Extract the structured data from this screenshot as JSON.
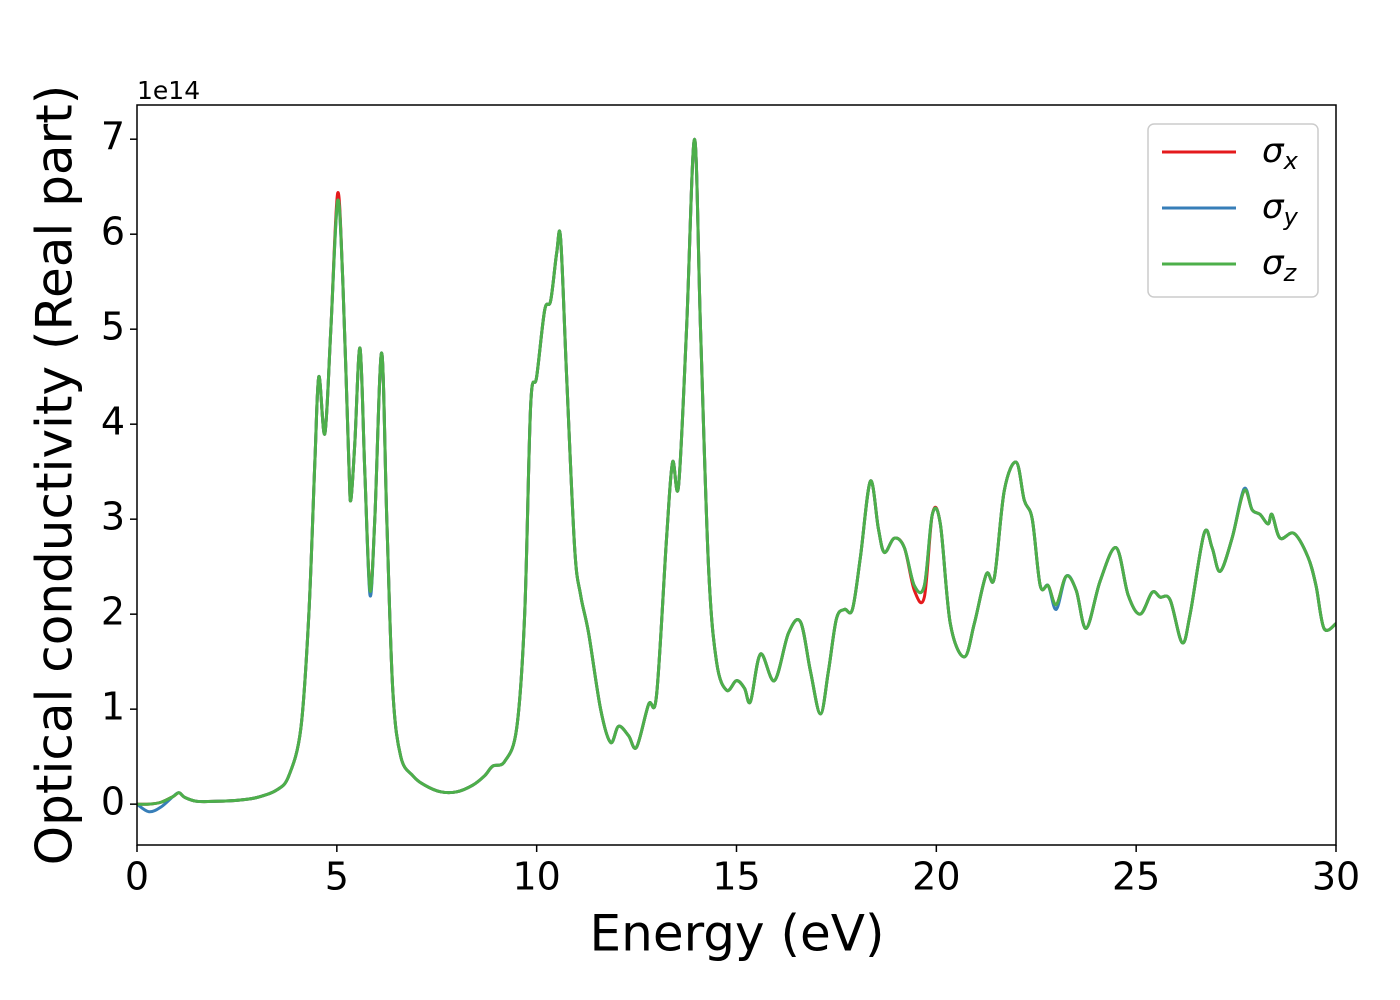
{
  "chart_data": {
    "type": "line",
    "xlabel": "Energy (eV)",
    "ylabel": "Optical conductivity (Real part)",
    "y_offset_label": "1e14",
    "xlim": [
      0,
      30
    ],
    "ylim": [
      -0.43,
      7.36
    ],
    "xticks": [
      0,
      5,
      10,
      15,
      20,
      25,
      30
    ],
    "yticks": [
      0,
      1,
      2,
      3,
      4,
      5,
      6,
      7
    ],
    "grid": false,
    "legend": "upper right",
    "x": [
      0,
      0.3,
      0.6,
      0.9,
      1.05,
      1.2,
      1.5,
      2,
      2.5,
      3,
      3.5,
      3.8,
      4.1,
      4.3,
      4.45,
      4.55,
      4.7,
      4.85,
      5.02,
      5.15,
      5.3,
      5.35,
      5.45,
      5.58,
      5.7,
      5.83,
      5.95,
      6.12,
      6.25,
      6.4,
      6.6,
      6.9,
      7.2,
      7.6,
      8,
      8.4,
      8.7,
      8.9,
      9.2,
      9.5,
      9.7,
      9.85,
      10,
      10.2,
      10.35,
      10.5,
      10.6,
      10.75,
      10.95,
      11.1,
      11.3,
      11.6,
      11.85,
      12.05,
      12.3,
      12.5,
      12.8,
      13,
      13.25,
      13.4,
      13.55,
      13.75,
      13.95,
      14.1,
      14.3,
      14.5,
      14.75,
      15,
      15.2,
      15.35,
      15.6,
      15.95,
      16.3,
      16.6,
      16.85,
      17.1,
      17.3,
      17.5,
      17.7,
      17.9,
      18.1,
      18.35,
      18.55,
      18.7,
      18.95,
      19.2,
      19.45,
      19.7,
      19.9,
      20.1,
      20.35,
      20.7,
      20.95,
      21.25,
      21.45,
      21.7,
      22,
      22.2,
      22.4,
      22.6,
      22.8,
      23,
      23.25,
      23.5,
      23.75,
      24.1,
      24.5,
      24.8,
      25.1,
      25.4,
      25.6,
      25.85,
      26.15,
      26.35,
      26.7,
      26.9,
      27.1,
      27.4,
      27.7,
      27.9,
      28.1,
      28.3,
      28.4,
      28.6,
      28.95,
      29.3,
      29.5,
      29.7,
      30
    ],
    "series": [
      {
        "name": "σx",
        "color": "#e41a1c",
        "values": [
          0,
          0.0,
          0.02,
          0.08,
          0.12,
          0.07,
          0.03,
          0.03,
          0.04,
          0.07,
          0.15,
          0.3,
          0.8,
          2.0,
          3.6,
          4.5,
          3.9,
          5.0,
          6.43,
          5.5,
          3.6,
          3.2,
          3.8,
          4.8,
          3.5,
          2.25,
          3.0,
          4.75,
          3.0,
          1.2,
          0.5,
          0.3,
          0.2,
          0.13,
          0.13,
          0.2,
          0.3,
          0.4,
          0.45,
          0.8,
          2.0,
          4.2,
          4.5,
          5.2,
          5.3,
          5.8,
          5.95,
          4.5,
          2.7,
          2.2,
          1.8,
          1.0,
          0.65,
          0.82,
          0.72,
          0.6,
          1.05,
          1.15,
          2.8,
          3.6,
          3.35,
          5.0,
          7.0,
          5.0,
          2.5,
          1.5,
          1.2,
          1.3,
          1.22,
          1.08,
          1.58,
          1.3,
          1.8,
          1.92,
          1.4,
          0.95,
          1.4,
          1.95,
          2.05,
          2.05,
          2.6,
          3.4,
          2.9,
          2.65,
          2.8,
          2.7,
          2.25,
          2.18,
          3.05,
          2.95,
          1.9,
          1.55,
          1.9,
          2.42,
          2.38,
          3.3,
          3.6,
          3.2,
          3.0,
          2.3,
          2.3,
          2.1,
          2.4,
          2.25,
          1.85,
          2.35,
          2.7,
          2.2,
          2.0,
          2.23,
          2.18,
          2.15,
          1.7,
          2.0,
          2.85,
          2.7,
          2.45,
          2.8,
          3.3,
          3.1,
          3.05,
          2.95,
          3.05,
          2.8,
          2.85,
          2.6,
          2.3,
          1.85,
          1.9
        ]
      },
      {
        "name": "σy",
        "color": "#377eb8",
        "values": [
          0,
          -0.08,
          -0.03,
          0.08,
          0.12,
          0.07,
          0.03,
          0.03,
          0.04,
          0.07,
          0.15,
          0.3,
          0.8,
          2.0,
          3.6,
          4.5,
          3.9,
          5.0,
          6.35,
          5.5,
          3.6,
          3.2,
          3.8,
          4.8,
          3.5,
          2.2,
          3.0,
          4.75,
          3.0,
          1.2,
          0.5,
          0.3,
          0.2,
          0.13,
          0.13,
          0.2,
          0.3,
          0.4,
          0.45,
          0.8,
          2.0,
          4.2,
          4.5,
          5.2,
          5.3,
          5.8,
          5.95,
          4.5,
          2.7,
          2.2,
          1.8,
          1.0,
          0.65,
          0.82,
          0.72,
          0.6,
          1.05,
          1.15,
          2.8,
          3.6,
          3.35,
          5.0,
          7.0,
          5.0,
          2.5,
          1.5,
          1.2,
          1.3,
          1.22,
          1.08,
          1.58,
          1.3,
          1.8,
          1.92,
          1.4,
          0.95,
          1.4,
          1.95,
          2.05,
          2.05,
          2.6,
          3.4,
          2.9,
          2.65,
          2.8,
          2.7,
          2.3,
          2.3,
          3.05,
          2.95,
          1.9,
          1.55,
          1.9,
          2.42,
          2.38,
          3.3,
          3.6,
          3.2,
          3.0,
          2.3,
          2.3,
          2.05,
          2.4,
          2.25,
          1.85,
          2.35,
          2.7,
          2.2,
          2.0,
          2.23,
          2.18,
          2.15,
          1.7,
          2.0,
          2.85,
          2.7,
          2.45,
          2.8,
          3.32,
          3.1,
          3.05,
          2.95,
          3.05,
          2.8,
          2.85,
          2.6,
          2.3,
          1.85,
          1.9
        ]
      },
      {
        "name": "σz",
        "color": "#4daf4a",
        "values": [
          0,
          0.0,
          0.02,
          0.08,
          0.12,
          0.07,
          0.03,
          0.03,
          0.04,
          0.07,
          0.15,
          0.3,
          0.8,
          2.0,
          3.6,
          4.5,
          3.9,
          5.0,
          6.35,
          5.5,
          3.6,
          3.2,
          3.8,
          4.8,
          3.5,
          2.25,
          3.0,
          4.75,
          3.0,
          1.2,
          0.5,
          0.3,
          0.2,
          0.13,
          0.13,
          0.2,
          0.3,
          0.4,
          0.45,
          0.8,
          2.0,
          4.2,
          4.5,
          5.2,
          5.3,
          5.8,
          5.95,
          4.5,
          2.7,
          2.2,
          1.8,
          1.0,
          0.65,
          0.82,
          0.72,
          0.6,
          1.05,
          1.15,
          2.8,
          3.6,
          3.35,
          5.0,
          7.0,
          5.0,
          2.5,
          1.5,
          1.2,
          1.3,
          1.22,
          1.08,
          1.58,
          1.3,
          1.8,
          1.92,
          1.4,
          0.95,
          1.4,
          1.95,
          2.05,
          2.05,
          2.6,
          3.4,
          2.9,
          2.65,
          2.8,
          2.7,
          2.3,
          2.3,
          3.05,
          2.95,
          1.9,
          1.55,
          1.9,
          2.42,
          2.38,
          3.3,
          3.6,
          3.2,
          3.0,
          2.3,
          2.3,
          2.1,
          2.4,
          2.25,
          1.85,
          2.35,
          2.7,
          2.2,
          2.0,
          2.23,
          2.18,
          2.15,
          1.7,
          2.0,
          2.85,
          2.7,
          2.45,
          2.8,
          3.3,
          3.1,
          3.05,
          2.95,
          3.05,
          2.8,
          2.85,
          2.6,
          2.3,
          1.85,
          1.9
        ]
      }
    ]
  }
}
